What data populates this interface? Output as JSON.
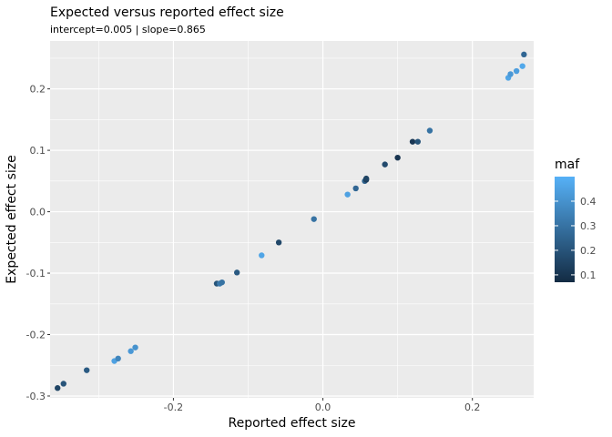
{
  "chart_data": {
    "type": "scatter",
    "title": "Expected versus reported effect size",
    "subtitle": "intercept=0.005 | slope=0.865",
    "xlabel": "Reported effect size",
    "ylabel": "Expected effect size",
    "xlim": [
      -0.365,
      0.282
    ],
    "ylim": [
      -0.303,
      0.278
    ],
    "x_ticks": [
      -0.2,
      0.0,
      0.2
    ],
    "x_tick_labels": [
      "-0.2",
      "0.0",
      "0.2"
    ],
    "y_ticks": [
      -0.3,
      -0.2,
      -0.1,
      0.0,
      0.1,
      0.2
    ],
    "y_tick_labels": [
      "-0.3",
      "-0.2",
      "-0.1",
      "0.0",
      "0.1",
      "0.2"
    ],
    "grid": true,
    "background": "#ebebeb",
    "legend": {
      "title": "maf",
      "placement": "right",
      "type": "colorbar",
      "range": [
        0.07,
        0.5
      ],
      "ticks": [
        0.1,
        0.2,
        0.3,
        0.4
      ],
      "tick_labels": [
        "0.1",
        "0.2",
        "0.3",
        "0.4"
      ],
      "low_color": "#132b43",
      "high_color": "#56b1f7"
    },
    "points": [
      {
        "x": -0.355,
        "y": -0.287,
        "maf": 0.15
      },
      {
        "x": -0.347,
        "y": -0.28,
        "maf": 0.2
      },
      {
        "x": -0.316,
        "y": -0.258,
        "maf": 0.22
      },
      {
        "x": -0.279,
        "y": -0.243,
        "maf": 0.45
      },
      {
        "x": -0.274,
        "y": -0.239,
        "maf": 0.36
      },
      {
        "x": -0.257,
        "y": -0.227,
        "maf": 0.42
      },
      {
        "x": -0.251,
        "y": -0.221,
        "maf": 0.4
      },
      {
        "x": -0.142,
        "y": -0.117,
        "maf": 0.2
      },
      {
        "x": -0.138,
        "y": -0.117,
        "maf": 0.32
      },
      {
        "x": -0.135,
        "y": -0.115,
        "maf": 0.3
      },
      {
        "x": -0.115,
        "y": -0.099,
        "maf": 0.22
      },
      {
        "x": -0.082,
        "y": -0.071,
        "maf": 0.46
      },
      {
        "x": -0.059,
        "y": -0.05,
        "maf": 0.16
      },
      {
        "x": -0.012,
        "y": -0.012,
        "maf": 0.3
      },
      {
        "x": 0.033,
        "y": 0.028,
        "maf": 0.45
      },
      {
        "x": 0.044,
        "y": 0.038,
        "maf": 0.26
      },
      {
        "x": 0.056,
        "y": 0.05,
        "maf": 0.25
      },
      {
        "x": 0.058,
        "y": 0.052,
        "maf": 0.12
      },
      {
        "x": 0.058,
        "y": 0.054,
        "maf": 0.15
      },
      {
        "x": 0.083,
        "y": 0.077,
        "maf": 0.17
      },
      {
        "x": 0.1,
        "y": 0.088,
        "maf": 0.1
      },
      {
        "x": 0.12,
        "y": 0.114,
        "maf": 0.11
      },
      {
        "x": 0.127,
        "y": 0.114,
        "maf": 0.2
      },
      {
        "x": 0.143,
        "y": 0.132,
        "maf": 0.3
      },
      {
        "x": 0.248,
        "y": 0.218,
        "maf": 0.46
      },
      {
        "x": 0.251,
        "y": 0.224,
        "maf": 0.42
      },
      {
        "x": 0.259,
        "y": 0.229,
        "maf": 0.44
      },
      {
        "x": 0.267,
        "y": 0.237,
        "maf": 0.47
      },
      {
        "x": 0.269,
        "y": 0.256,
        "maf": 0.26
      }
    ]
  }
}
